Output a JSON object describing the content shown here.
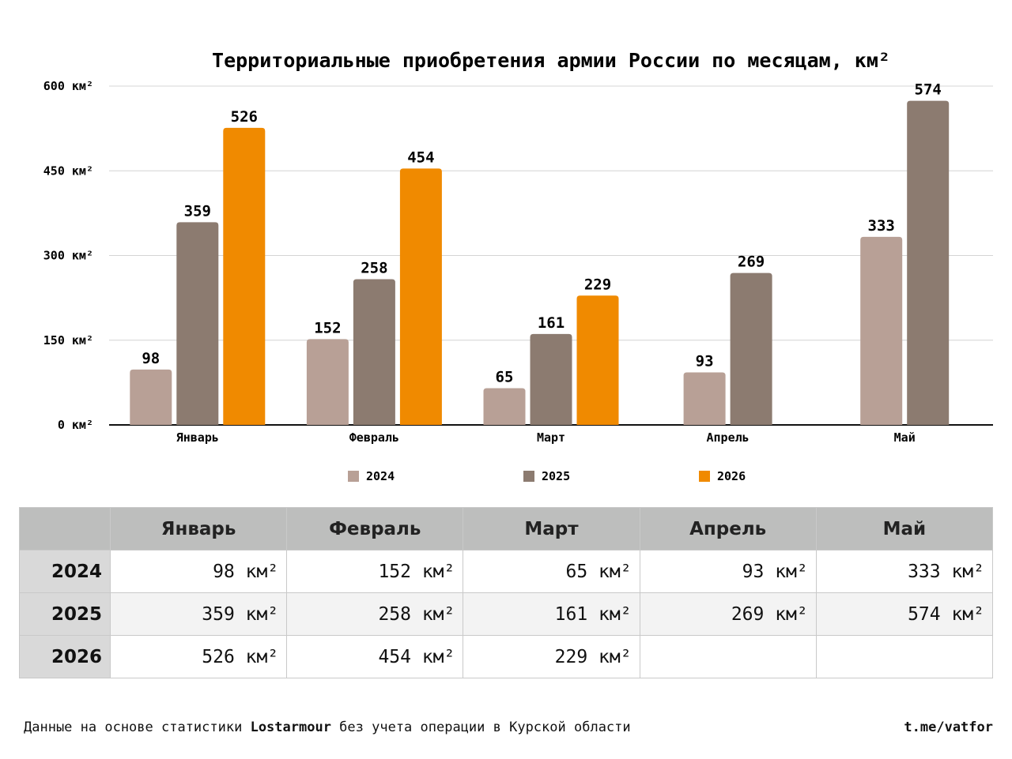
{
  "chart_data": {
    "type": "bar",
    "title": "Территориальные приобретения армии России по месяцам, км²",
    "categories": [
      "Январь",
      "Февраль",
      "Март",
      "Апрель",
      "Май"
    ],
    "series": [
      {
        "name": "2024",
        "color": "#b8a096",
        "values": [
          98,
          152,
          65,
          93,
          333
        ]
      },
      {
        "name": "2025",
        "color": "#8c7b70",
        "values": [
          359,
          258,
          161,
          269,
          574
        ]
      },
      {
        "name": "2026",
        "color": "#f08a00",
        "values": [
          526,
          454,
          229,
          null,
          null
        ]
      }
    ],
    "ylim": [
      0,
      600
    ],
    "yticks": [
      0,
      150,
      300,
      450,
      600
    ],
    "ytick_labels": [
      "0 км²",
      "150 км²",
      "300 км²",
      "450 км²",
      "600 км²"
    ],
    "grid": true,
    "legend_position": "bottom"
  },
  "table": {
    "headers": [
      "Январь",
      "Февраль",
      "Март",
      "Апрель",
      "Май"
    ],
    "rows": [
      {
        "label": "2024",
        "cells": [
          "98 км²",
          "152 км²",
          "65 км²",
          "93 км²",
          "333 км²"
        ]
      },
      {
        "label": "2025",
        "cells": [
          "359 км²",
          "258 км²",
          "161 км²",
          "269 км²",
          "574 км²"
        ]
      },
      {
        "label": "2026",
        "cells": [
          "526 км²",
          "454 км²",
          "229 км²",
          "",
          ""
        ]
      }
    ]
  },
  "footer": {
    "source_prefix": "Данные на основе статистики ",
    "source_name": "Lostarmour",
    "source_suffix": " без учета операции в Курской области",
    "channel": "t.me/vatfor"
  }
}
